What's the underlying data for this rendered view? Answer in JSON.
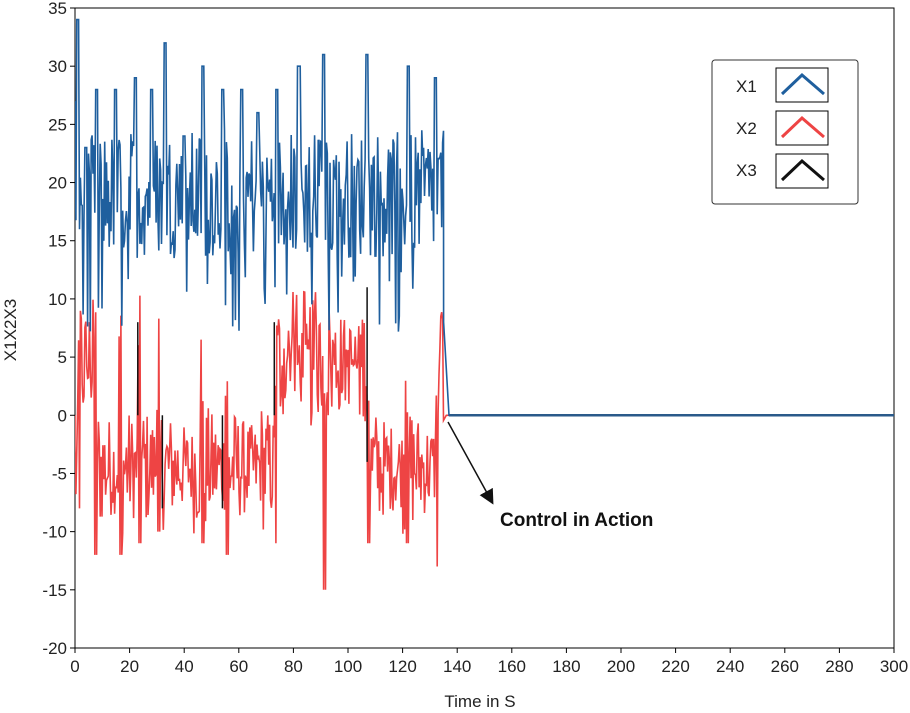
{
  "chart_data": {
    "type": "line",
    "xlabel": "Time in S",
    "ylabel": "X1X2X3",
    "xlim": [
      0,
      300
    ],
    "ylim": [
      -20,
      35
    ],
    "x_ticks": [
      0,
      20,
      40,
      60,
      80,
      100,
      120,
      140,
      160,
      180,
      200,
      220,
      240,
      260,
      280,
      300
    ],
    "y_ticks": [
      -20,
      -15,
      -10,
      -5,
      0,
      5,
      10,
      15,
      20,
      25,
      30,
      35
    ],
    "grid": false,
    "legend_position": "top-right",
    "annotation": {
      "text": "Control in Action",
      "points_to": [
        137,
        0
      ]
    },
    "control_time": 135,
    "series": [
      {
        "name": "X1",
        "color": "#1f5f9e",
        "description": "chaotic oscillation between approx. 5 and 34 until t=135, then 0",
        "bursts": [
          {
            "t": 1,
            "max": 34
          },
          {
            "t": 4,
            "max": 23
          },
          {
            "t": 8,
            "max": 28
          },
          {
            "t": 15,
            "max": 28
          },
          {
            "t": 22,
            "max": 29
          },
          {
            "t": 28,
            "max": 28
          },
          {
            "t": 33,
            "max": 32
          },
          {
            "t": 40,
            "max": 24
          },
          {
            "t": 47,
            "max": 30
          },
          {
            "t": 54,
            "max": 28
          },
          {
            "t": 61,
            "max": 28
          },
          {
            "t": 67,
            "max": 26
          },
          {
            "t": 74,
            "max": 28
          },
          {
            "t": 82,
            "max": 30
          },
          {
            "t": 91,
            "max": 31
          },
          {
            "t": 107,
            "max": 31
          },
          {
            "t": 122,
            "max": 30
          },
          {
            "t": 132,
            "max": 29
          }
        ],
        "after_control": 0
      },
      {
        "name": "X2",
        "color": "#ee4444",
        "description": "chaotic oscillation between approx. -15 and 11 until t=135, then 0",
        "bursts": [
          {
            "t": 1,
            "min": -8
          },
          {
            "t": 7,
            "min": -12
          },
          {
            "t": 16,
            "min": -12
          },
          {
            "t": 23,
            "min": -11
          },
          {
            "t": 30,
            "min": -10
          },
          {
            "t": 46,
            "min": -11
          },
          {
            "t": 55,
            "min": -12
          },
          {
            "t": 73,
            "min": -11
          },
          {
            "t": 91,
            "min": -15
          },
          {
            "t": 107,
            "min": -11
          },
          {
            "t": 121,
            "min": -11
          },
          {
            "t": 132,
            "min": -13
          }
        ],
        "after_control": 0
      },
      {
        "name": "X3",
        "color": "#111111",
        "description": "thin vertical spikes, then 0 after control",
        "spikes": [
          {
            "t": 23,
            "y0": 0,
            "y1": 8
          },
          {
            "t": 32,
            "y0": -8,
            "y1": 0
          },
          {
            "t": 54,
            "y0": -8,
            "y1": 0
          },
          {
            "t": 73,
            "y0": 0,
            "y1": 8
          },
          {
            "t": 107,
            "y0": -4,
            "y1": 11
          }
        ],
        "after_control": 0
      }
    ]
  }
}
